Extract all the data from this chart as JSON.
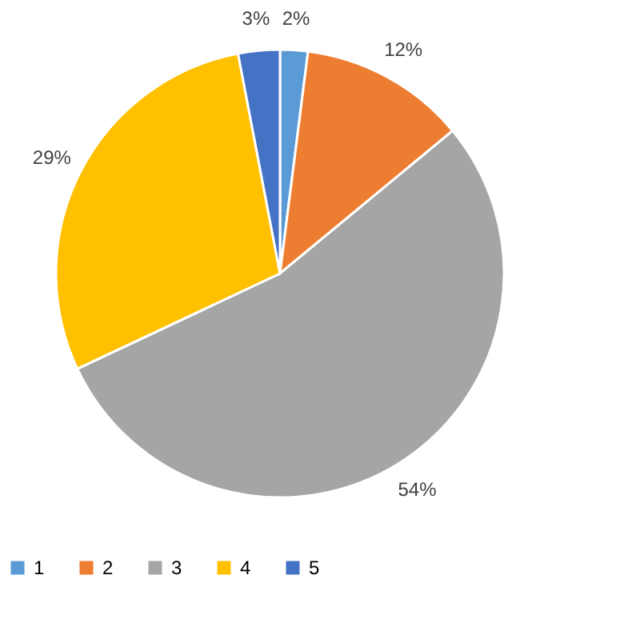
{
  "chart_data": {
    "type": "pie",
    "categories": [
      "1",
      "2",
      "3",
      "4",
      "5"
    ],
    "values": [
      2,
      12,
      54,
      29,
      3
    ],
    "colors": [
      "#5b9bd5",
      "#ed7d31",
      "#a5a5a5",
      "#ffc000",
      "#4472c4"
    ],
    "value_labels": [
      "2%",
      "12%",
      "54%",
      "29%",
      "3%"
    ],
    "legend": "bottom"
  }
}
